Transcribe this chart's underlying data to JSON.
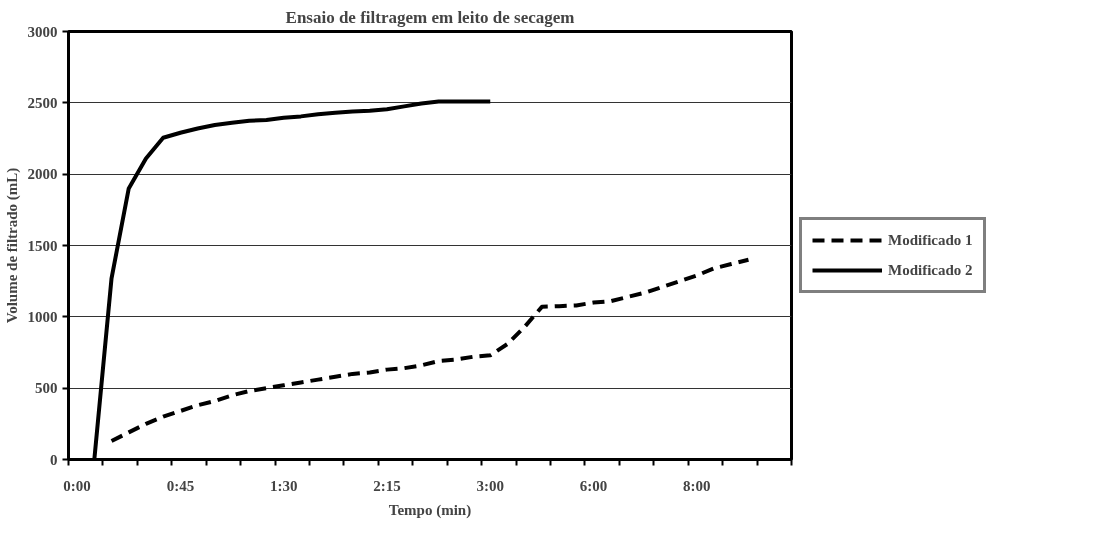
{
  "chart_data": {
    "type": "line",
    "title": "Ensaio de filtragem em leito de secagem",
    "xlabel": "Tempo (min)",
    "ylabel": "Volume de filtrado (mL)",
    "categories": [
      "0:00",
      null,
      null,
      null,
      null,
      null,
      "0:45",
      null,
      null,
      null,
      null,
      null,
      "1:30",
      null,
      null,
      null,
      null,
      null,
      "2:15",
      null,
      null,
      null,
      null,
      null,
      "3:00",
      null,
      null,
      null,
      null,
      null,
      "6:00",
      null,
      null,
      null,
      null,
      null,
      "8:00",
      null,
      null,
      null,
      null,
      null
    ],
    "ylim": [
      0,
      3000
    ],
    "yticks": [
      0,
      500,
      1000,
      1500,
      2000,
      2500,
      3000
    ],
    "grid": "y",
    "legend": "right",
    "series": [
      {
        "name": "Modificado 1",
        "color": "#000000",
        "line_style": "dashed",
        "values": [
          null,
          null,
          130,
          190,
          250,
          300,
          340,
          380,
          410,
          450,
          480,
          500,
          520,
          540,
          560,
          580,
          600,
          610,
          630,
          640,
          660,
          690,
          700,
          720,
          730,
          810,
          930,
          1070,
          1075,
          1080,
          1100,
          1110,
          1140,
          1170,
          1210,
          1250,
          1290,
          1340,
          1370,
          1400,
          null,
          null
        ]
      },
      {
        "name": "Modificado 2",
        "color": "#000000",
        "line_style": "solid",
        "values": [
          null,
          0,
          1270,
          1900,
          2110,
          2255,
          2290,
          2320,
          2345,
          2360,
          2375,
          2380,
          2395,
          2405,
          2420,
          2430,
          2440,
          2445,
          2455,
          2475,
          2495,
          2510,
          2510,
          2510,
          2510,
          null,
          null,
          null,
          null,
          null,
          null,
          null,
          null,
          null,
          null,
          null,
          null,
          null,
          null,
          null,
          null,
          null
        ]
      }
    ]
  }
}
